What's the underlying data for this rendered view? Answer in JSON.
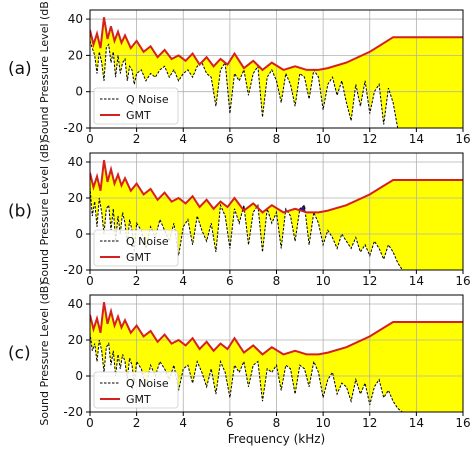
{
  "figure": {
    "xlabel": "Frequency (kHz)",
    "ylabel": "Sound Pressure Level (dB)"
  },
  "chart_data": [
    {
      "panel_label": "(a)",
      "type": "line",
      "xlabel": "Frequency (kHz)",
      "ylabel": "Sound Pressure Level (dB)",
      "xlim": [
        0,
        16
      ],
      "ylim": [
        -20,
        45
      ],
      "xticks": [
        0,
        2,
        4,
        6,
        8,
        10,
        12,
        14,
        16
      ],
      "yticks": [
        -20,
        0,
        20,
        40
      ],
      "grid": true,
      "legend": "lower-left",
      "series": [
        {
          "name": "Q Noise",
          "style": "dashed",
          "color": "#000000",
          "x": [
            0,
            0.1,
            0.2,
            0.3,
            0.4,
            0.5,
            0.6,
            0.7,
            0.8,
            0.9,
            1.0,
            1.1,
            1.2,
            1.3,
            1.4,
            1.5,
            1.6,
            1.7,
            1.8,
            1.9,
            2.0,
            2.2,
            2.4,
            2.6,
            2.8,
            3.0,
            3.2,
            3.4,
            3.6,
            3.8,
            4.0,
            4.2,
            4.4,
            4.6,
            4.8,
            5.0,
            5.2,
            5.4,
            5.6,
            5.8,
            6.0,
            6.2,
            6.4,
            6.6,
            6.8,
            7.0,
            7.2,
            7.4,
            7.6,
            7.8,
            8.0,
            8.2,
            8.4,
            8.6,
            8.8,
            9.0,
            9.2,
            9.4,
            9.6,
            9.8,
            10.0,
            10.2,
            10.4,
            10.6,
            10.8,
            11.0,
            11.2,
            11.4,
            11.6,
            11.8,
            12.0,
            12.2,
            12.4,
            12.6,
            12.8,
            13.0,
            13.2
          ],
          "y": [
            28,
            24,
            20,
            10,
            22,
            16,
            6,
            24,
            26,
            16,
            22,
            8,
            20,
            10,
            16,
            18,
            6,
            14,
            12,
            4,
            10,
            12,
            6,
            10,
            8,
            12,
            14,
            8,
            12,
            6,
            10,
            12,
            8,
            14,
            16,
            10,
            8,
            -8,
            12,
            16,
            -12,
            10,
            6,
            12,
            -2,
            10,
            14,
            -14,
            8,
            12,
            6,
            -6,
            10,
            4,
            -8,
            10,
            8,
            -4,
            12,
            8,
            -10,
            4,
            8,
            -2,
            6,
            -6,
            -16,
            4,
            -8,
            6,
            -12,
            0,
            4,
            -18,
            2,
            -6,
            -20
          ]
        },
        {
          "name": "GMT",
          "style": "solid",
          "color": "#d62020",
          "x": [
            0,
            0.15,
            0.3,
            0.45,
            0.6,
            0.75,
            0.9,
            1.05,
            1.2,
            1.35,
            1.5,
            1.75,
            2.0,
            2.3,
            2.6,
            2.9,
            3.2,
            3.5,
            3.8,
            4.1,
            4.4,
            4.7,
            5.0,
            5.3,
            5.6,
            5.9,
            6.2,
            6.6,
            7.0,
            7.4,
            7.8,
            8.3,
            8.8,
            9.3,
            9.8,
            10.2,
            11.0,
            12.0,
            13.0,
            14.0,
            16.0
          ],
          "y": [
            34,
            26,
            32,
            24,
            41,
            29,
            36,
            28,
            33,
            27,
            31,
            24,
            28,
            22,
            25,
            19,
            23,
            18,
            20,
            17,
            21,
            15,
            19,
            14,
            18,
            15,
            21,
            13,
            17,
            12,
            16,
            12,
            14,
            12,
            12,
            13,
            16,
            22,
            30,
            30,
            30
          ]
        }
      ]
    },
    {
      "panel_label": "(b)",
      "type": "line",
      "xlabel": "Frequency (kHz)",
      "ylabel": "Sound Pressure Level (dB)",
      "xlim": [
        0,
        16
      ],
      "ylim": [
        -20,
        45
      ],
      "xticks": [
        0,
        2,
        4,
        6,
        8,
        10,
        12,
        14,
        16
      ],
      "yticks": [
        -20,
        0,
        20,
        40
      ],
      "grid": true,
      "legend": "lower-left",
      "series": [
        {
          "name": "Q Noise",
          "style": "dashed",
          "color": "#000000",
          "x": [
            0,
            0.1,
            0.2,
            0.3,
            0.4,
            0.5,
            0.6,
            0.7,
            0.8,
            0.9,
            1.0,
            1.1,
            1.2,
            1.3,
            1.4,
            1.5,
            1.6,
            1.7,
            1.8,
            1.9,
            2.0,
            2.2,
            2.4,
            2.6,
            2.8,
            3.0,
            3.2,
            3.4,
            3.6,
            3.8,
            4.0,
            4.2,
            4.4,
            4.6,
            4.8,
            5.0,
            5.2,
            5.4,
            5.6,
            5.8,
            6.0,
            6.2,
            6.4,
            6.6,
            6.8,
            7.0,
            7.2,
            7.4,
            7.6,
            7.8,
            8.0,
            8.2,
            8.4,
            8.6,
            8.8,
            9.0,
            9.2,
            9.4,
            9.6,
            9.8,
            10.0,
            10.2,
            10.4,
            10.6,
            10.8,
            11.0,
            11.2,
            11.4,
            11.6,
            11.8,
            12.0,
            12.2,
            12.4,
            12.6,
            12.8,
            13.0,
            13.2,
            13.4
          ],
          "y": [
            26,
            10,
            18,
            4,
            20,
            12,
            0,
            14,
            16,
            2,
            14,
            -4,
            10,
            0,
            12,
            6,
            -6,
            8,
            2,
            -10,
            6,
            2,
            -8,
            4,
            -2,
            8,
            2,
            -4,
            6,
            -12,
            4,
            8,
            -6,
            10,
            2,
            -4,
            6,
            -10,
            16,
            10,
            -8,
            14,
            6,
            16,
            -6,
            12,
            16,
            -10,
            14,
            6,
            12,
            -8,
            14,
            10,
            -4,
            14,
            16,
            -6,
            12,
            6,
            -6,
            2,
            -2,
            -8,
            0,
            -4,
            -8,
            -2,
            -10,
            -6,
            -12,
            -4,
            -8,
            -14,
            -6,
            -10,
            -16,
            -20
          ]
        },
        {
          "name": "GMT",
          "style": "solid",
          "color": "#d62020",
          "x": [
            0,
            0.15,
            0.3,
            0.45,
            0.6,
            0.75,
            0.9,
            1.05,
            1.2,
            1.35,
            1.5,
            1.75,
            2.0,
            2.3,
            2.6,
            2.9,
            3.2,
            3.5,
            3.8,
            4.1,
            4.4,
            4.7,
            5.0,
            5.3,
            5.6,
            5.9,
            6.2,
            6.6,
            7.0,
            7.4,
            7.8,
            8.3,
            8.8,
            9.3,
            9.8,
            10.2,
            11.0,
            12.0,
            13.0,
            14.0,
            16.0
          ],
          "y": [
            34,
            26,
            32,
            24,
            41,
            29,
            36,
            28,
            33,
            27,
            31,
            24,
            28,
            22,
            25,
            19,
            23,
            18,
            20,
            17,
            21,
            15,
            19,
            14,
            18,
            15,
            20,
            13,
            17,
            12,
            16,
            12,
            14,
            12,
            12,
            13,
            16,
            22,
            30,
            30,
            30
          ]
        }
      ]
    },
    {
      "panel_label": "(c)",
      "type": "line",
      "xlabel": "Frequency (kHz)",
      "ylabel": "Sound Pressure Level (dB)",
      "xlim": [
        0,
        16
      ],
      "ylim": [
        -20,
        45
      ],
      "xticks": [
        0,
        2,
        4,
        6,
        8,
        10,
        12,
        14,
        16
      ],
      "yticks": [
        -20,
        0,
        20,
        40
      ],
      "grid": true,
      "legend": "lower-left",
      "series": [
        {
          "name": "Q Noise",
          "style": "dashed",
          "color": "#000000",
          "x": [
            0,
            0.1,
            0.2,
            0.3,
            0.4,
            0.5,
            0.6,
            0.7,
            0.8,
            0.9,
            1.0,
            1.1,
            1.2,
            1.3,
            1.4,
            1.5,
            1.6,
            1.7,
            1.8,
            1.9,
            2.0,
            2.2,
            2.4,
            2.6,
            2.8,
            3.0,
            3.2,
            3.4,
            3.6,
            3.8,
            4.0,
            4.2,
            4.4,
            4.6,
            4.8,
            5.0,
            5.2,
            5.4,
            5.6,
            5.8,
            6.0,
            6.2,
            6.4,
            6.6,
            6.8,
            7.0,
            7.2,
            7.4,
            7.6,
            7.8,
            8.0,
            8.2,
            8.4,
            8.6,
            8.8,
            9.0,
            9.2,
            9.4,
            9.6,
            9.8,
            10.0,
            10.2,
            10.4,
            10.6,
            10.8,
            11.0,
            11.2,
            11.4,
            11.6,
            11.8,
            12.0,
            12.2,
            12.4,
            12.6,
            12.8,
            13.0,
            13.2,
            13.4
          ],
          "y": [
            24,
            14,
            18,
            8,
            20,
            14,
            2,
            16,
            18,
            6,
            14,
            0,
            12,
            4,
            12,
            8,
            -2,
            10,
            6,
            -4,
            8,
            4,
            -6,
            6,
            0,
            8,
            4,
            -2,
            6,
            -8,
            4,
            6,
            -4,
            8,
            2,
            -6,
            4,
            -10,
            8,
            2,
            -12,
            6,
            2,
            8,
            -6,
            6,
            8,
            -14,
            4,
            2,
            6,
            -8,
            6,
            4,
            -10,
            6,
            4,
            -6,
            8,
            2,
            -12,
            -2,
            2,
            -10,
            -4,
            -6,
            -14,
            -2,
            -10,
            -4,
            -16,
            -6,
            -2,
            -12,
            -8,
            -14,
            -18,
            -20
          ]
        },
        {
          "name": "GMT",
          "style": "solid",
          "color": "#d62020",
          "x": [
            0,
            0.15,
            0.3,
            0.45,
            0.6,
            0.75,
            0.9,
            1.05,
            1.2,
            1.35,
            1.5,
            1.75,
            2.0,
            2.3,
            2.6,
            2.9,
            3.2,
            3.5,
            3.8,
            4.1,
            4.4,
            4.7,
            5.0,
            5.3,
            5.6,
            5.9,
            6.2,
            6.6,
            7.0,
            7.4,
            7.8,
            8.3,
            8.8,
            9.3,
            9.8,
            10.2,
            11.0,
            12.0,
            13.0,
            14.0,
            16.0
          ],
          "y": [
            34,
            26,
            32,
            24,
            41,
            29,
            36,
            28,
            33,
            27,
            31,
            24,
            28,
            22,
            25,
            19,
            23,
            18,
            20,
            17,
            21,
            15,
            19,
            14,
            18,
            15,
            21,
            13,
            17,
            12,
            16,
            12,
            14,
            12,
            12,
            13,
            16,
            22,
            30,
            30,
            30
          ]
        }
      ]
    }
  ],
  "colors": {
    "fill_masked": "#ffff00",
    "exceed": "#1a1aa6",
    "gmt": "#d62020",
    "grid": "#b0b0b0"
  }
}
